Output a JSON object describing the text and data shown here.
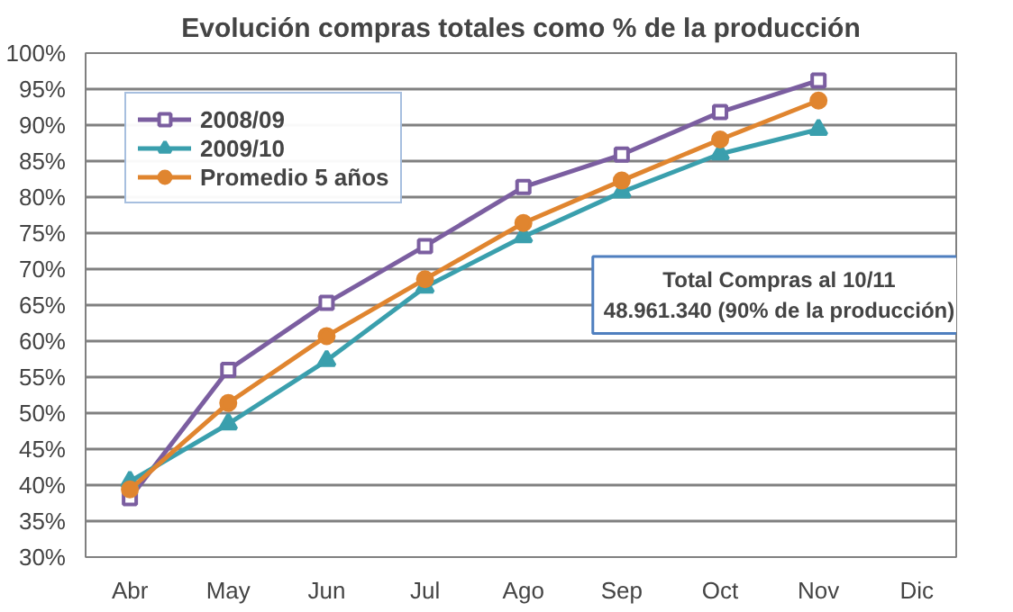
{
  "chart_data": {
    "type": "line",
    "title": "Evolución compras totales como % de la producción",
    "categories": [
      "Abr",
      "May",
      "Jun",
      "Jul",
      "Ago",
      "Sep",
      "Oct",
      "Nov",
      "Dic"
    ],
    "series": [
      {
        "name": "2008/09",
        "color": "#7b5ea0",
        "marker": "square",
        "values": [
          38.2,
          56,
          65.3,
          73.2,
          81.4,
          85.9,
          91.8,
          96.2,
          null
        ]
      },
      {
        "name": "2009/10",
        "color": "#3a9fad",
        "marker": "triangle",
        "values": [
          40.5,
          48.5,
          57.3,
          67.5,
          74.5,
          80.7,
          86,
          89.4,
          null
        ]
      },
      {
        "name": "Promedio 5 años",
        "color": "#e0852f",
        "marker": "circle",
        "values": [
          39.4,
          51.4,
          60.7,
          68.6,
          76.4,
          82.3,
          88,
          93.4,
          null
        ]
      }
    ],
    "ylim": [
      30,
      100
    ],
    "yticks": [
      {
        "value": 30,
        "label": "30%"
      },
      {
        "value": 35,
        "label": "35%"
      },
      {
        "value": 40,
        "label": "40%"
      },
      {
        "value": 45,
        "label": "45%"
      },
      {
        "value": 50,
        "label": "50%"
      },
      {
        "value": 55,
        "label": "55%"
      },
      {
        "value": 60,
        "label": "60%"
      },
      {
        "value": 65,
        "label": "65%"
      },
      {
        "value": 70,
        "label": "70%"
      },
      {
        "value": 75,
        "label": "75%"
      },
      {
        "value": 80,
        "label": "80%"
      },
      {
        "value": 85,
        "label": "85%"
      },
      {
        "value": 90,
        "label": "90%"
      },
      {
        "value": 95,
        "label": "95%"
      },
      {
        "value": 100,
        "label": "100%"
      }
    ],
    "grid": "y",
    "legend": "top left",
    "line_style": "solid",
    "annotations": [
      "Total Compras al 10/11",
      "48.961.340 (90% de la producción)"
    ]
  }
}
